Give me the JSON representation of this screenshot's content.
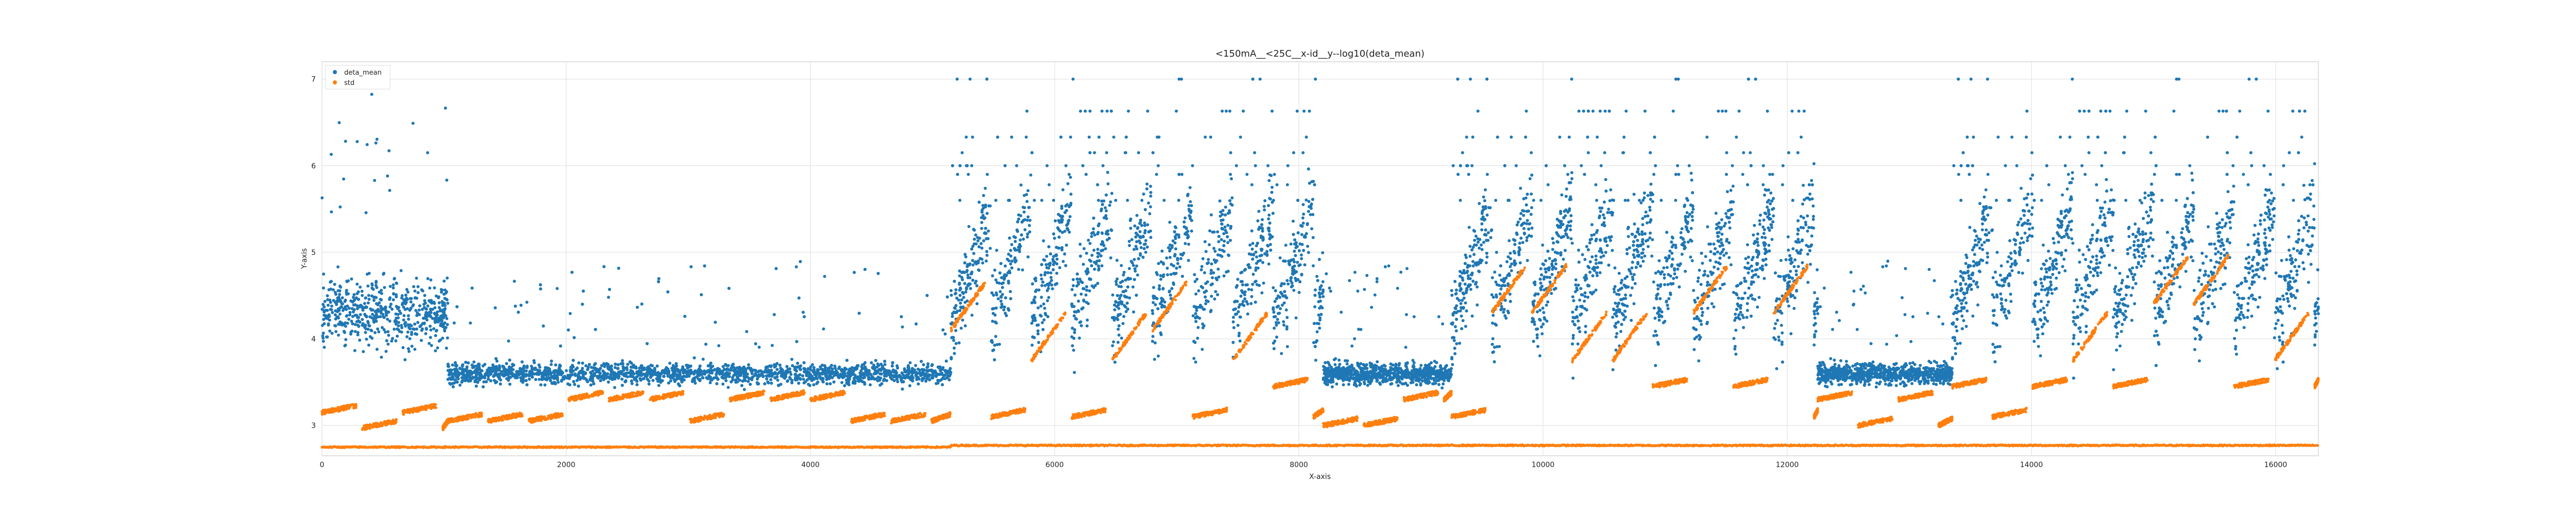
{
  "chart_data": {
    "type": "scatter",
    "title": "<150mA__<25C__x-id__y--log10(deta_mean)",
    "xlabel": "X-axis",
    "ylabel": "Y-axis",
    "xlim": [
      0,
      16350
    ],
    "ylim": [
      2.65,
      7.2
    ],
    "xticks": [
      0,
      2000,
      4000,
      6000,
      8000,
      10000,
      12000,
      14000,
      16000
    ],
    "yticks": [
      3,
      4,
      5,
      6,
      7
    ],
    "grid": true,
    "legend": "top-left",
    "series": [
      {
        "name": "deta_mean",
        "color": "#1f77b4",
        "marker": "dot",
        "segments": [
          {
            "x_start": 0,
            "x_end": 1030,
            "center": 4.3,
            "spread": 0.45,
            "note": "scattered cloud"
          },
          {
            "x_start": 1030,
            "x_end": 5150,
            "center": 3.6,
            "spread": 0.12,
            "note": "dense band"
          },
          {
            "x_start": 5150,
            "x_end": 8200,
            "center": 5.0,
            "spread": 0.6,
            "note": "oscillating cloud"
          },
          {
            "x_start": 8200,
            "x_end": 9250,
            "center": 3.6,
            "spread": 0.12,
            "note": "dense band"
          },
          {
            "x_start": 9250,
            "x_end": 12250,
            "center": 5.0,
            "spread": 0.6,
            "note": "oscillating cloud"
          },
          {
            "x_start": 12250,
            "x_end": 13350,
            "center": 3.6,
            "spread": 0.12,
            "note": "dense band"
          },
          {
            "x_start": 13350,
            "x_end": 16350,
            "center": 5.0,
            "spread": 0.6,
            "note": "oscillating cloud"
          }
        ],
        "discrete_levels": [
          5.6,
          5.78,
          5.9,
          6.0,
          6.15,
          6.33,
          6.63,
          7.0
        ]
      },
      {
        "name": "std",
        "color": "#ff7f0e",
        "marker": "dot",
        "baseline_level": 2.75,
        "steps": [
          {
            "x_start": 0,
            "x_end": 1030,
            "levels": [
              2.97,
              3.15
            ]
          },
          {
            "x_start": 1030,
            "x_end": 5150,
            "levels": [
              3.05,
              3.3
            ]
          },
          {
            "x_start": 5150,
            "x_end": 8200,
            "levels": [
              3.1,
              3.45,
              3.75,
              4.1
            ]
          },
          {
            "x_start": 8200,
            "x_end": 9250,
            "levels": [
              3.0,
              3.3
            ]
          },
          {
            "x_start": 9250,
            "x_end": 12250,
            "levels": [
              3.1,
              3.45,
              3.75,
              4.3
            ]
          },
          {
            "x_start": 12250,
            "x_end": 13350,
            "levels": [
              3.0,
              3.3
            ]
          },
          {
            "x_start": 13350,
            "x_end": 16350,
            "levels": [
              3.1,
              3.45,
              3.75,
              4.4
            ]
          }
        ]
      }
    ]
  }
}
